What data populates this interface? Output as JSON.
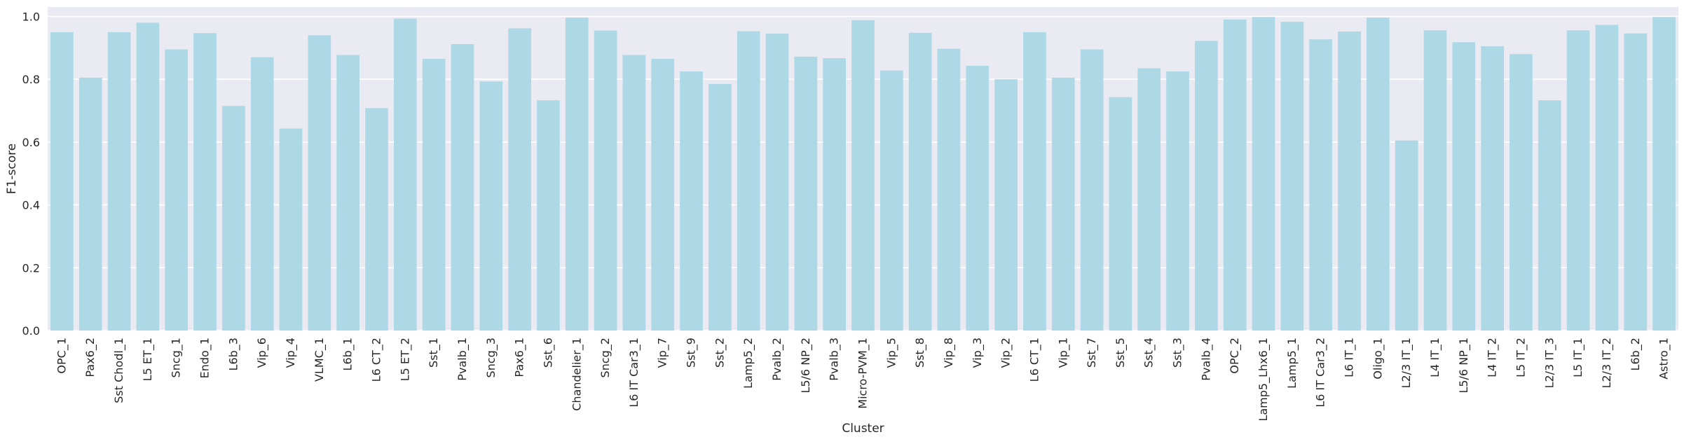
{
  "chart_data": {
    "type": "bar",
    "xlabel": "Cluster",
    "ylabel": "F1-score",
    "ylim": [
      0,
      1.03
    ],
    "yticks": [
      "0.0",
      "0.2",
      "0.4",
      "0.6",
      "0.8",
      "1.0"
    ],
    "grid": true,
    "categories": [
      "OPC_1",
      "Pax6_2",
      "Sst Chodl_1",
      "L5 ET_1",
      "Sncg_1",
      "Endo_1",
      "L6b_3",
      "Vip_6",
      "Vip_4",
      "VLMC_1",
      "L6b_1",
      "L6 CT_2",
      "L5 ET_2",
      "Sst_1",
      "Pvalb_1",
      "Sncg_3",
      "Pax6_1",
      "Sst_6",
      "Chandelier_1",
      "Sncg_2",
      "L6 IT Car3_1",
      "Vip_7",
      "Sst_9",
      "Sst_2",
      "Lamp5_2",
      "Pvalb_2",
      "L5/6 NP_2",
      "Pvalb_3",
      "Micro-PVM_1",
      "Vip_5",
      "Sst_8",
      "Vip_8",
      "Vip_3",
      "Vip_2",
      "L6 CT_1",
      "Vip_1",
      "Sst_7",
      "Sst_5",
      "Sst_4",
      "Sst_3",
      "Pvalb_4",
      "OPC_2",
      "Lamp5_Lhx6_1",
      "Lamp5_1",
      "L6 IT Car3_2",
      "L6 IT_1",
      "Oligo_1",
      "L2/3 IT_1",
      "L4 IT_1",
      "L5/6 NP_1",
      "L4 IT_2",
      "L5 IT_2",
      "L2/3 IT_3",
      "L5 IT_1",
      "L2/3 IT_2",
      "L6b_2",
      "Astro_1"
    ],
    "values": [
      0.95,
      0.805,
      0.95,
      0.98,
      0.895,
      0.947,
      0.715,
      0.87,
      0.643,
      0.94,
      0.877,
      0.708,
      0.993,
      0.865,
      0.912,
      0.793,
      0.962,
      0.733,
      0.996,
      0.955,
      0.877,
      0.865,
      0.825,
      0.785,
      0.953,
      0.945,
      0.872,
      0.867,
      0.988,
      0.828,
      0.948,
      0.897,
      0.843,
      0.8,
      0.95,
      0.805,
      0.895,
      0.743,
      0.835,
      0.825,
      0.922,
      0.99,
      0.998,
      0.983,
      0.927,
      0.952,
      0.996,
      0.605,
      0.956,
      0.918,
      0.905,
      0.88,
      0.733,
      0.956,
      0.973,
      0.946,
      0.998
    ],
    "colors": {
      "bar": "#add8e6",
      "plot_background": "#eaeaf2",
      "grid": "#ffffff",
      "text": "#262626"
    }
  }
}
